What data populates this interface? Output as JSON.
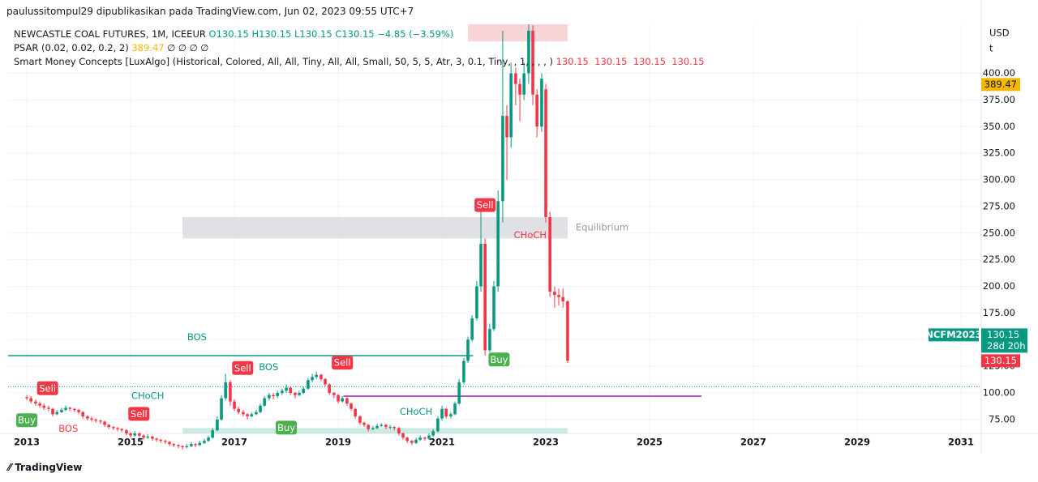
{
  "header": "paulussitompul29 dipublikasikan pada TradingView.com, Jun 02, 2023 09:55 UTC+7",
  "legend": {
    "symbol": "NEWCASTLE COAL FUTURES, 1M, ICEEUR",
    "ohlc": [
      "O130.15",
      "H130.15",
      "L130.15",
      "C130.15",
      "−4.85 (−3.59%)"
    ],
    "psar": "PSAR (0.02, 0.02, 0.2, 2)",
    "psar_value": "389.47",
    "psar_rest": "∅ ∅ ∅ ∅",
    "smc": "Smart Money Concepts [LuxAlgo] (Historical, Colored, All, All, Tiny, All, All, Small, 50, 5, 5, Atr, 3, 0.1, Tiny, , 1, , , , )",
    "smc_values": [
      "130.15",
      "130.15",
      "130.15",
      "130.15"
    ]
  },
  "footer": "TradingView",
  "chart_data": {
    "type": "candlestick",
    "currency": "USD",
    "unit": "t",
    "up_color": "#089981",
    "down_color": "#f23645",
    "xlim": [
      2012.64,
      2031.39
    ],
    "xticks": [
      2013,
      2015,
      2017,
      2019,
      2021,
      2023,
      2025,
      2027,
      2029,
      2031
    ],
    "ylim": [
      62,
      446
    ],
    "yticks": [
      {
        "value": 75,
        "label": "75.00"
      },
      {
        "value": 100,
        "label": "100.00"
      },
      {
        "value": 125,
        "label": "125.00"
      },
      {
        "value": 150,
        "label": "150.00"
      },
      {
        "value": 175,
        "label": "175.00"
      },
      {
        "value": 200,
        "label": "200.00"
      },
      {
        "value": 225,
        "label": "225.00"
      },
      {
        "value": 250,
        "label": "250.00"
      },
      {
        "value": 275,
        "label": "275.00"
      },
      {
        "value": 300,
        "label": "300.00"
      },
      {
        "value": 325,
        "label": "325.00"
      },
      {
        "value": 350,
        "label": "350.00"
      },
      {
        "value": 375,
        "label": "375.00"
      },
      {
        "value": 400,
        "label": "400.00"
      }
    ],
    "grid": true,
    "x": [
      2013,
      2013.08,
      2013.17,
      2013.25,
      2013.33,
      2013.42,
      2013.5,
      2013.58,
      2013.67,
      2013.75,
      2013.83,
      2013.92,
      2014,
      2014.08,
      2014.17,
      2014.25,
      2014.33,
      2014.42,
      2014.5,
      2014.58,
      2014.67,
      2014.75,
      2014.83,
      2014.92,
      2015,
      2015.08,
      2015.17,
      2015.25,
      2015.33,
      2015.42,
      2015.5,
      2015.58,
      2015.67,
      2015.75,
      2015.83,
      2015.92,
      2016,
      2016.08,
      2016.17,
      2016.25,
      2016.33,
      2016.42,
      2016.5,
      2016.58,
      2016.67,
      2016.75,
      2016.83,
      2016.92,
      2017,
      2017.08,
      2017.17,
      2017.25,
      2017.33,
      2017.42,
      2017.5,
      2017.58,
      2017.67,
      2017.75,
      2017.83,
      2017.92,
      2018,
      2018.08,
      2018.17,
      2018.25,
      2018.33,
      2018.42,
      2018.5,
      2018.58,
      2018.67,
      2018.75,
      2018.83,
      2018.92,
      2019,
      2019.08,
      2019.17,
      2019.25,
      2019.33,
      2019.42,
      2019.5,
      2019.58,
      2019.67,
      2019.75,
      2019.83,
      2019.92,
      2020,
      2020.08,
      2020.17,
      2020.25,
      2020.33,
      2020.42,
      2020.5,
      2020.58,
      2020.67,
      2020.75,
      2020.83,
      2020.92,
      2021,
      2021.08,
      2021.17,
      2021.25,
      2021.33,
      2021.42,
      2021.5,
      2021.58,
      2021.67,
      2021.75,
      2021.83,
      2021.92,
      2022,
      2022.08,
      2022.17,
      2022.25,
      2022.33,
      2022.42,
      2022.5,
      2022.58,
      2022.67,
      2022.75,
      2022.83,
      2022.92,
      2023,
      2023.08,
      2023.17,
      2023.25,
      2023.33,
      2023.42
    ],
    "candles": [
      [
        96,
        98,
        93,
        95
      ],
      [
        95,
        97,
        90,
        92
      ],
      [
        92,
        94,
        88,
        90
      ],
      [
        90,
        92,
        86,
        88
      ],
      [
        88,
        90,
        84,
        86
      ],
      [
        86,
        88,
        83,
        85
      ],
      [
        85,
        86,
        78,
        80
      ],
      [
        80,
        84,
        79,
        82
      ],
      [
        82,
        86,
        81,
        84
      ],
      [
        84,
        88,
        83,
        86
      ],
      [
        86,
        87,
        83,
        85
      ],
      [
        85,
        86,
        82,
        84
      ],
      [
        84,
        85,
        80,
        82
      ],
      [
        82,
        83,
        76,
        78
      ],
      [
        78,
        79,
        74,
        76
      ],
      [
        76,
        78,
        73,
        75
      ],
      [
        75,
        76,
        72,
        74
      ],
      [
        74,
        75,
        71,
        73
      ],
      [
        73,
        74,
        68,
        70
      ],
      [
        70,
        71,
        66,
        68
      ],
      [
        68,
        69,
        65,
        67
      ],
      [
        67,
        68,
        64,
        66
      ],
      [
        66,
        67,
        63,
        65
      ],
      [
        65,
        66,
        60,
        62
      ],
      [
        62,
        63,
        58,
        60
      ],
      [
        60,
        64,
        59,
        62
      ],
      [
        62,
        63,
        58,
        60
      ],
      [
        60,
        61,
        56,
        58
      ],
      [
        58,
        61,
        57,
        59
      ],
      [
        59,
        60,
        55,
        57
      ],
      [
        57,
        58,
        54,
        56
      ],
      [
        56,
        57,
        53,
        55
      ],
      [
        55,
        56,
        52,
        54
      ],
      [
        54,
        55,
        50,
        52
      ],
      [
        52,
        53,
        49,
        51
      ],
      [
        51,
        52,
        48,
        50
      ],
      [
        50,
        51,
        47,
        49
      ],
      [
        49,
        52,
        48,
        50
      ],
      [
        50,
        54,
        49,
        52
      ],
      [
        52,
        53,
        49,
        51
      ],
      [
        51,
        55,
        50,
        53
      ],
      [
        53,
        57,
        52,
        55
      ],
      [
        55,
        60,
        54,
        58
      ],
      [
        58,
        67,
        57,
        65
      ],
      [
        65,
        78,
        64,
        75
      ],
      [
        75,
        98,
        74,
        95
      ],
      [
        95,
        118,
        93,
        110
      ],
      [
        110,
        112,
        88,
        92
      ],
      [
        92,
        94,
        83,
        85
      ],
      [
        85,
        87,
        80,
        82
      ],
      [
        82,
        84,
        78,
        80
      ],
      [
        80,
        81,
        75,
        78
      ],
      [
        78,
        82,
        77,
        80
      ],
      [
        80,
        84,
        79,
        82
      ],
      [
        82,
        90,
        81,
        88
      ],
      [
        88,
        97,
        87,
        95
      ],
      [
        95,
        100,
        93,
        98
      ],
      [
        98,
        100,
        94,
        97
      ],
      [
        97,
        102,
        95,
        100
      ],
      [
        100,
        104,
        98,
        102
      ],
      [
        102,
        108,
        100,
        105
      ],
      [
        105,
        106,
        98,
        100
      ],
      [
        100,
        101,
        95,
        98
      ],
      [
        98,
        102,
        97,
        100
      ],
      [
        100,
        106,
        99,
        104
      ],
      [
        104,
        114,
        103,
        112
      ],
      [
        112,
        118,
        110,
        115
      ],
      [
        115,
        120,
        113,
        117
      ],
      [
        117,
        118,
        111,
        113
      ],
      [
        113,
        114,
        106,
        108
      ],
      [
        108,
        109,
        98,
        100
      ],
      [
        100,
        101,
        95,
        98
      ],
      [
        98,
        99,
        90,
        92
      ],
      [
        92,
        97,
        91,
        95
      ],
      [
        95,
        96,
        88,
        90
      ],
      [
        90,
        91,
        83,
        85
      ],
      [
        85,
        86,
        76,
        78
      ],
      [
        78,
        79,
        70,
        72
      ],
      [
        72,
        73,
        68,
        70
      ],
      [
        70,
        71,
        64,
        66
      ],
      [
        66,
        69,
        65,
        67
      ],
      [
        67,
        71,
        66,
        69
      ],
      [
        69,
        72,
        68,
        70
      ],
      [
        70,
        71,
        66,
        68
      ],
      [
        68,
        70,
        66,
        68
      ],
      [
        68,
        69,
        65,
        67
      ],
      [
        67,
        68,
        60,
        62
      ],
      [
        62,
        63,
        56,
        58
      ],
      [
        58,
        59,
        53,
        55
      ],
      [
        55,
        56,
        51,
        53
      ],
      [
        53,
        58,
        52,
        56
      ],
      [
        56,
        60,
        55,
        58
      ],
      [
        58,
        59,
        55,
        57
      ],
      [
        57,
        62,
        56,
        60
      ],
      [
        60,
        66,
        59,
        64
      ],
      [
        64,
        78,
        63,
        76
      ],
      [
        76,
        88,
        74,
        85
      ],
      [
        85,
        86,
        76,
        78
      ],
      [
        78,
        82,
        76,
        80
      ],
      [
        80,
        92,
        79,
        90
      ],
      [
        90,
        113,
        89,
        110
      ],
      [
        110,
        133,
        108,
        130
      ],
      [
        130,
        153,
        128,
        150
      ],
      [
        150,
        173,
        148,
        170
      ],
      [
        170,
        205,
        168,
        200
      ],
      [
        200,
        270,
        195,
        240
      ],
      [
        240,
        245,
        135,
        140
      ],
      [
        140,
        165,
        138,
        160
      ],
      [
        160,
        205,
        158,
        200
      ],
      [
        200,
        290,
        195,
        280
      ],
      [
        280,
        440,
        260,
        360
      ],
      [
        360,
        370,
        300,
        340
      ],
      [
        340,
        410,
        330,
        400
      ],
      [
        400,
        405,
        370,
        390
      ],
      [
        390,
        395,
        355,
        380
      ],
      [
        380,
        410,
        375,
        400
      ],
      [
        400,
        446,
        390,
        440
      ],
      [
        440,
        445,
        370,
        380
      ],
      [
        380,
        385,
        340,
        350
      ],
      [
        350,
        400,
        345,
        395
      ],
      [
        385,
        390,
        260,
        265
      ],
      [
        265,
        270,
        190,
        195
      ],
      [
        195,
        200,
        180,
        192
      ],
      [
        192,
        198,
        182,
        190
      ],
      [
        190,
        198,
        180,
        186
      ],
      [
        186,
        187,
        128,
        130.15
      ]
    ],
    "zones": [
      {
        "name": "premium",
        "x": [
          2021.5,
          2023.42
        ],
        "y": [
          430,
          446
        ],
        "color": "#f7c6c9"
      },
      {
        "name": "Equilibrium",
        "x": [
          2016.0,
          2023.42
        ],
        "y": [
          245,
          265
        ],
        "color": "#d6d7db"
      },
      {
        "name": "discount",
        "x": [
          2016.0,
          2023.42
        ],
        "y": [
          62,
          67
        ],
        "color": "#b8e3da"
      }
    ],
    "lines": [
      {
        "x": [
          2012.64,
          2021.6
        ],
        "y": 135,
        "color": "#089981"
      },
      {
        "x": [
          2019.1,
          2026.0
        ],
        "y": 97,
        "color": "#9c27b0"
      }
    ],
    "annotations": [
      {
        "text": "BOS",
        "x": 2016.28,
        "y": 152,
        "color": "#089981"
      },
      {
        "text": "BOS",
        "x": 2017.66,
        "y": 124,
        "color": "#089981"
      },
      {
        "text": "BOS",
        "x": 2013.8,
        "y": 66,
        "color": "#f23645"
      },
      {
        "text": "CHoCH",
        "x": 2015.33,
        "y": 97,
        "color": "#089981"
      },
      {
        "text": "CHoCH",
        "x": 2020.5,
        "y": 82,
        "color": "#089981"
      },
      {
        "text": "CHoCH",
        "x": 2022.7,
        "y": 248,
        "color": "#f23645"
      }
    ],
    "signals": [
      {
        "text": "Sell",
        "x": 2013.4,
        "y": 104,
        "color": "#f23645"
      },
      {
        "text": "Buy",
        "x": 2013.0,
        "y": 74,
        "color": "#4caf50"
      },
      {
        "text": "Sell",
        "x": 2015.16,
        "y": 80,
        "color": "#f23645"
      },
      {
        "text": "Sell",
        "x": 2017.16,
        "y": 123,
        "color": "#f23645"
      },
      {
        "text": "Buy",
        "x": 2018.0,
        "y": 67,
        "color": "#4caf50"
      },
      {
        "text": "Sell",
        "x": 2019.08,
        "y": 128,
        "color": "#f23645"
      },
      {
        "text": "Sell",
        "x": 2021.83,
        "y": 276,
        "color": "#f23645"
      },
      {
        "text": "Buy",
        "x": 2022.1,
        "y": 131,
        "color": "#4caf50"
      }
    ],
    "price_labels": [
      {
        "text": "389.47",
        "value": 389.47,
        "color": "#f5b800"
      },
      {
        "text": "130.15",
        "value": 130.15,
        "color": "#f23645"
      }
    ],
    "last_price": {
      "symbol": "NCFM2023",
      "price": "130.15",
      "countdown": "28d 20h",
      "value": 130.15
    }
  }
}
